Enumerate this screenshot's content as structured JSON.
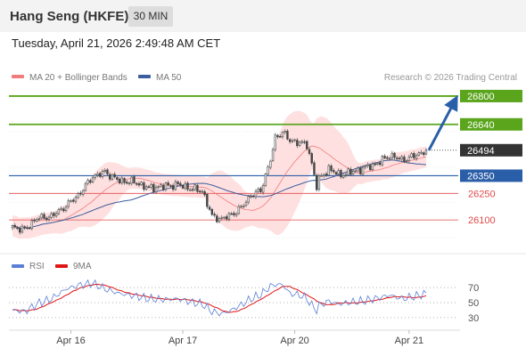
{
  "header": {
    "title": "Hang Seng (HKFE)",
    "timeframe": "30 MIN"
  },
  "timestamp": "Tuesday, April 21, 2026 2:49:48 AM CET",
  "colors": {
    "green": "#5aa51c",
    "blue": "#2b5ea8",
    "red": "#e04a4a",
    "boll": "#ffd6d6",
    "ma20": "#f07c7c",
    "ma50": "#3d5e9e",
    "rsi": "#5b7fd6",
    "rsi_ma": "#e01515",
    "candle": "#666666"
  },
  "chart_data": {
    "type": "candlestick",
    "legend": {
      "ma20": "MA 20 + Bollinger Bands",
      "ma50": "MA 50",
      "placement": "top-left"
    },
    "credit": "Research © 2026 Trading Central",
    "x_labels": [
      "Apr 16",
      "Apr 17",
      "Apr 20",
      "Apr 21"
    ],
    "price_range": [
      25960,
      26865
    ],
    "last_price": {
      "label": "26494",
      "value": 26494
    },
    "levels": [
      {
        "label": "26800",
        "value": 26800,
        "kind": "resistance"
      },
      {
        "label": "26640",
        "value": 26640,
        "kind": "resistance"
      },
      {
        "label": "26350",
        "value": 26350,
        "kind": "pivot"
      },
      {
        "label": "26250",
        "value": 26250,
        "kind": "support"
      },
      {
        "label": "26100",
        "value": 26100,
        "kind": "support"
      }
    ],
    "close_anchors": [
      [
        0,
        26060
      ],
      [
        5,
        26045
      ],
      [
        10,
        26110
      ],
      [
        16,
        26120
      ],
      [
        22,
        26180
      ],
      [
        27,
        26240
      ],
      [
        33,
        26345
      ],
      [
        38,
        26370
      ],
      [
        44,
        26320
      ],
      [
        50,
        26315
      ],
      [
        56,
        26280
      ],
      [
        62,
        26290
      ],
      [
        68,
        26300
      ],
      [
        74,
        26275
      ],
      [
        78,
        26265
      ],
      [
        82,
        26120
      ],
      [
        86,
        26105
      ],
      [
        90,
        26130
      ],
      [
        94,
        26170
      ],
      [
        98,
        26240
      ],
      [
        102,
        26265
      ],
      [
        106,
        26440
      ],
      [
        108,
        26560
      ],
      [
        111,
        26600
      ],
      [
        114,
        26545
      ],
      [
        118,
        26540
      ],
      [
        121,
        26520
      ],
      [
        123,
        26420
      ],
      [
        125,
        26290
      ],
      [
        126,
        26330
      ],
      [
        130,
        26390
      ],
      [
        134,
        26355
      ],
      [
        138,
        26365
      ],
      [
        144,
        26390
      ],
      [
        150,
        26420
      ],
      [
        155,
        26465
      ],
      [
        160,
        26440
      ],
      [
        165,
        26460
      ],
      [
        170,
        26494
      ]
    ],
    "rsi": {
      "ma_label": "9MA",
      "range": [
        18,
        82
      ],
      "ticks": [
        70,
        50,
        30
      ],
      "anchors": [
        [
          0,
          40
        ],
        [
          5,
          38
        ],
        [
          10,
          48
        ],
        [
          16,
          55
        ],
        [
          22,
          68
        ],
        [
          27,
          73
        ],
        [
          33,
          76
        ],
        [
          38,
          68
        ],
        [
          44,
          62
        ],
        [
          50,
          59
        ],
        [
          56,
          55
        ],
        [
          62,
          54
        ],
        [
          68,
          55
        ],
        [
          74,
          50
        ],
        [
          78,
          48
        ],
        [
          82,
          38
        ],
        [
          86,
          35
        ],
        [
          90,
          40
        ],
        [
          94,
          47
        ],
        [
          98,
          55
        ],
        [
          102,
          60
        ],
        [
          106,
          72
        ],
        [
          108,
          74
        ],
        [
          111,
          74
        ],
        [
          114,
          62
        ],
        [
          118,
          60
        ],
        [
          121,
          55
        ],
        [
          123,
          46
        ],
        [
          125,
          40
        ],
        [
          126,
          46
        ],
        [
          130,
          52
        ],
        [
          134,
          48
        ],
        [
          138,
          50
        ],
        [
          144,
          52
        ],
        [
          150,
          56
        ],
        [
          155,
          60
        ],
        [
          160,
          55
        ],
        [
          165,
          58
        ],
        [
          170,
          62
        ]
      ]
    }
  }
}
